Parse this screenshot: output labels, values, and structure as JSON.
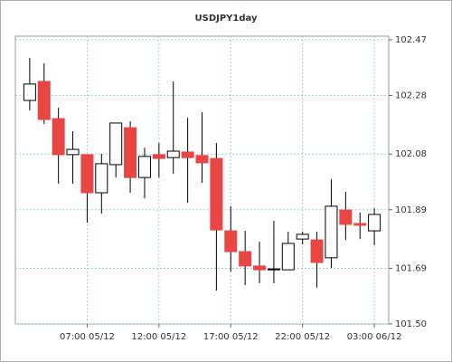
{
  "chart_data": {
    "type": "candlestick",
    "title": "USDJPY1day",
    "categories": [
      null,
      null,
      null,
      null,
      "07:00 05/12",
      null,
      null,
      null,
      null,
      "12:00 05/12",
      null,
      null,
      null,
      null,
      "17:00 05/12",
      null,
      null,
      null,
      null,
      "22:00 05/12",
      null,
      null,
      null,
      null,
      "03:00 06/12"
    ],
    "series": [
      {
        "open": [
          102.263,
          102.328,
          102.201,
          102.078,
          102.078,
          101.948,
          102.044,
          102.17,
          102.0,
          102.078,
          102.068,
          102.087,
          102.075,
          102.065,
          101.818,
          101.747,
          101.698,
          101.685,
          101.685,
          101.79,
          101.787,
          101.726,
          101.889,
          101.843,
          101.818
        ],
        "high": [
          102.408,
          102.39,
          102.238,
          102.158,
          102.078,
          102.081,
          102.186,
          102.192,
          102.102,
          102.118,
          102.328,
          102.204,
          102.223,
          102.118,
          101.902,
          101.818,
          101.781,
          101.852,
          101.815,
          101.815,
          101.815,
          101.994,
          101.951,
          101.88,
          101.895
        ],
        "low": [
          102.229,
          102.183,
          101.979,
          101.979,
          101.846,
          101.877,
          102.0,
          101.948,
          101.929,
          102.0,
          102.013,
          101.914,
          101.982,
          101.614,
          101.679,
          101.633,
          101.639,
          101.639,
          101.685,
          101.772,
          101.624,
          101.692,
          101.787,
          101.79,
          101.769
        ],
        "close": [
          102.319,
          102.198,
          102.078,
          102.096,
          101.948,
          102.047,
          102.186,
          102.0,
          102.072,
          102.065,
          102.09,
          102.068,
          102.05,
          101.821,
          101.747,
          101.698,
          101.685,
          101.688,
          101.775,
          101.806,
          101.71,
          101.902,
          101.84,
          101.837,
          101.874
        ],
        "up_color": "#ffffff",
        "down_color": "#e84545"
      }
    ],
    "ylim": [
      101.5,
      102.47
    ],
    "yticks": [
      {
        "value": 101.5,
        "label": "101.50"
      },
      101.69,
      101.89,
      102.08,
      102.28,
      102.47
    ],
    "grid": true
  }
}
